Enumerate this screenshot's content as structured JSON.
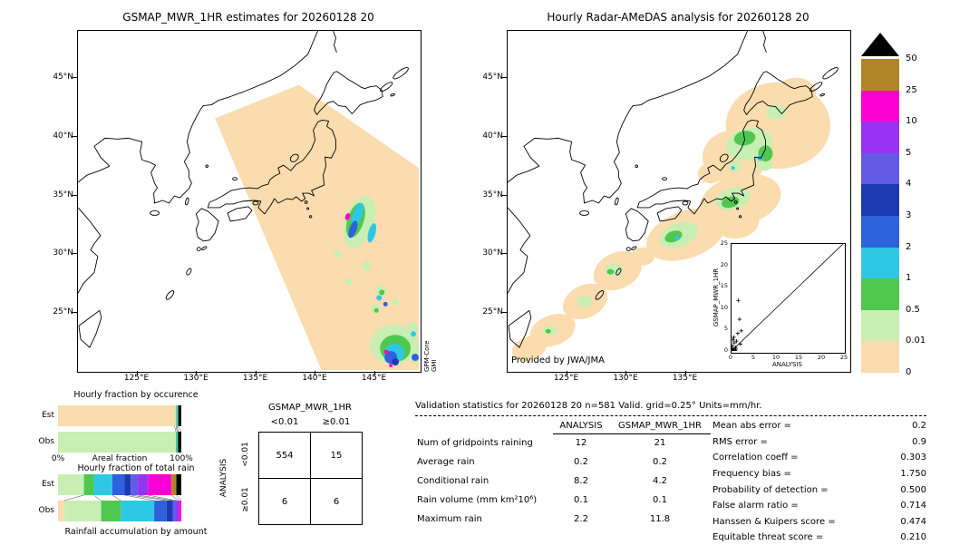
{
  "left_map": {
    "title": "GSMAP_MWR_1HR estimates for 20260128 20",
    "lat_ticks": [
      "45°N",
      "40°N",
      "35°N",
      "30°N",
      "25°N"
    ],
    "lon_ticks": [
      "125°E",
      "130°E",
      "135°E",
      "140°E",
      "145°E"
    ],
    "sensor_line1": "GPM-Core",
    "sensor_line2": "GMI"
  },
  "right_map": {
    "title": "Hourly Radar-AMeDAS analysis for 20260128 20",
    "lat_ticks": [
      "45°N",
      "40°N",
      "35°N",
      "30°N",
      "25°N"
    ],
    "lon_ticks": [
      "125°E",
      "130°E",
      "135°E"
    ],
    "credit": "Provided by JWA/JMA"
  },
  "inset": {
    "xlabel": "ANALYSIS",
    "ylabel": "GSMAP_MWR_1HR",
    "x_ticks": [
      "0",
      "5",
      "10",
      "15",
      "20",
      "25"
    ],
    "y_ticks": [
      "0",
      "5",
      "10",
      "15",
      "20",
      "25"
    ]
  },
  "colorbar": {
    "tick_labels": [
      "50",
      "25",
      "10",
      "5",
      "4",
      "3",
      "2",
      "1",
      "0.5",
      "0.01",
      "0"
    ],
    "colors": [
      "#b28428",
      "#fa00d2",
      "#9632f0",
      "#645ae8",
      "#1e3ab0",
      "#2d62dc",
      "#2ec8e6",
      "#50c850",
      "#c8eeb4",
      "#fbdcae"
    ],
    "overflow_color": "#000000"
  },
  "occurrence_chart": {
    "title": "Hourly fraction by occurence",
    "row_labels": [
      "Est",
      "Obs"
    ],
    "x_min": "0%",
    "x_max": "100%",
    "x_title": "Areal fraction"
  },
  "amount_chart": {
    "title": "Hourly fraction of total rain",
    "row_labels": [
      "Est",
      "Obs"
    ],
    "caption": "Rainfall accumulation by amount"
  },
  "contingency": {
    "title": "GSMAP_MWR_1HR",
    "col_labels": [
      "<0.01",
      "≥0.01"
    ],
    "row_labels": [
      "<0.01",
      "≥0.01"
    ],
    "side_label": "ANALYSIS",
    "values": [
      [
        "554",
        "15"
      ],
      [
        "6",
        "6"
      ]
    ]
  },
  "stats": {
    "title": "Validation statistics for 20260128 20  n=581 Valid. grid=0.25° Units=mm/hr.",
    "col_headers": [
      "ANALYSIS",
      "GSMAP_MWR_1HR"
    ],
    "rows": [
      {
        "label": "Num of gridpoints raining",
        "analysis": "12",
        "gsmap": "21"
      },
      {
        "label": "Average rain",
        "analysis": "0.2",
        "gsmap": "0.2"
      },
      {
        "label": "Conditional rain",
        "analysis": "8.2",
        "gsmap": "4.2"
      },
      {
        "label": "Rain volume (mm km²10⁶)",
        "analysis": "0.1",
        "gsmap": "0.1"
      },
      {
        "label": "Maximum rain",
        "analysis": "2.2",
        "gsmap": "11.8"
      }
    ],
    "metrics": [
      {
        "label": "Mean abs error",
        "value": "0.2"
      },
      {
        "label": "RMS error",
        "value": "0.9"
      },
      {
        "label": "Correlation coeff",
        "value": "0.303"
      },
      {
        "label": "Frequency bias",
        "value": "1.750"
      },
      {
        "label": "Probability of detection",
        "value": "0.500"
      },
      {
        "label": "False alarm ratio",
        "value": "0.714"
      },
      {
        "label": "Hanssen & Kuipers score",
        "value": "0.474"
      },
      {
        "label": "Equitable threat score",
        "value": "0.210"
      }
    ]
  },
  "chart_data": [
    {
      "type": "scatter",
      "title": "GSMAP_MWR_1HR vs ANALYSIS (inset)",
      "xlabel": "ANALYSIS",
      "ylabel": "GSMAP_MWR_1HR",
      "xlim": [
        0,
        25
      ],
      "ylim": [
        0,
        25
      ],
      "diagonal_line": true,
      "points": [
        [
          0.1,
          0.1
        ],
        [
          0.2,
          0.2
        ],
        [
          0.3,
          0.1
        ],
        [
          0.1,
          0.6
        ],
        [
          0.4,
          0.3
        ],
        [
          0.2,
          1.2
        ],
        [
          0.6,
          1.9
        ],
        [
          0.9,
          0.8
        ],
        [
          1.1,
          2.3
        ],
        [
          0.5,
          3.2
        ],
        [
          1.4,
          4.1
        ],
        [
          2.2,
          4.7
        ],
        [
          1.8,
          7.4
        ],
        [
          1.5,
          11.8
        ],
        [
          0.8,
          0.1
        ],
        [
          0.3,
          2.6
        ],
        [
          1.0,
          0.4
        ],
        [
          2.0,
          1.6
        ]
      ]
    },
    {
      "type": "bar",
      "title": "Hourly fraction by occurence",
      "orientation": "horizontal",
      "categories": [
        "Est",
        "Obs"
      ],
      "xlabel": "Areal fraction",
      "xlim_labels": [
        "0%",
        "100%"
      ],
      "est_segments": [
        {
          "color": "#fbdcae",
          "frac": 0.945
        },
        {
          "color": "#c8eeb4",
          "frac": 0.013
        },
        {
          "color": "#50c850",
          "frac": 0.008
        },
        {
          "color": "#2ec8e6",
          "frac": 0.006
        },
        {
          "color": "#2d62dc",
          "frac": 0.005
        },
        {
          "color": "#000000",
          "frac": 0.023
        }
      ],
      "obs_segments": [
        {
          "color": "#c8eeb4",
          "frac": 0.956
        },
        {
          "color": "#50c850",
          "frac": 0.01
        },
        {
          "color": "#2ec8e6",
          "frac": 0.008
        },
        {
          "color": "#000000",
          "frac": 0.026
        }
      ]
    },
    {
      "type": "bar",
      "title": "Hourly fraction of total rain",
      "orientation": "horizontal",
      "categories": [
        "Est",
        "Obs"
      ],
      "caption": "Rainfall accumulation by amount",
      "est_segments": [
        {
          "color": "#c8eeb4",
          "frac": 0.21
        },
        {
          "color": "#50c850",
          "frac": 0.08
        },
        {
          "color": "#2ec8e6",
          "frac": 0.15
        },
        {
          "color": "#2d62dc",
          "frac": 0.1
        },
        {
          "color": "#1e3ab0",
          "frac": 0.05
        },
        {
          "color": "#645ae8",
          "frac": 0.06
        },
        {
          "color": "#9632f0",
          "frac": 0.08
        },
        {
          "color": "#fa00d2",
          "frac": 0.19
        },
        {
          "color": "#b28428",
          "frac": 0.04
        },
        {
          "color": "#000000",
          "frac": 0.04
        }
      ],
      "obs_segments": [
        {
          "color": "#fbdcae",
          "frac": 0.05
        },
        {
          "color": "#c8eeb4",
          "frac": 0.3
        },
        {
          "color": "#50c850",
          "frac": 0.16
        },
        {
          "color": "#2ec8e6",
          "frac": 0.27
        },
        {
          "color": "#2d62dc",
          "frac": 0.1
        },
        {
          "color": "#1e3ab0",
          "frac": 0.05
        },
        {
          "color": "#645ae8",
          "frac": 0.03
        },
        {
          "color": "#9632f0",
          "frac": 0.02
        },
        {
          "color": "#fa00d2",
          "frac": 0.02
        }
      ]
    },
    {
      "type": "table",
      "title": "GSMAP_MWR_1HR contingency (counts)",
      "row_axis": "ANALYSIS",
      "columns": [
        "<0.01",
        "≥0.01"
      ],
      "row_labels": [
        "<0.01",
        "≥0.01"
      ],
      "values": [
        [
          554,
          15
        ],
        [
          6,
          6
        ]
      ]
    },
    {
      "type": "table",
      "title": "Validation statistics for 20260128 20 n=581 Valid. grid=0.25° Units=mm/hr.",
      "columns": [
        "ANALYSIS",
        "GSMAP_MWR_1HR"
      ],
      "rows": [
        [
          "Num of gridpoints raining",
          12,
          21
        ],
        [
          "Average rain",
          0.2,
          0.2
        ],
        [
          "Conditional rain",
          8.2,
          4.2
        ],
        [
          "Rain volume (mm km²10⁶)",
          0.1,
          0.1
        ],
        [
          "Maximum rain",
          2.2,
          11.8
        ]
      ],
      "metrics": {
        "Mean abs error": 0.2,
        "RMS error": 0.9,
        "Correlation coeff": 0.303,
        "Frequency bias": 1.75,
        "Probability of detection": 0.5,
        "False alarm ratio": 0.714,
        "Hanssen & Kuipers score": 0.474,
        "Equitable threat score": 0.21
      }
    },
    {
      "type": "legend",
      "title": "Rain rate scale (mm/hr)",
      "levels_low_to_high": [
        "0",
        "0.01",
        "0.5",
        "1",
        "2",
        "3",
        "4",
        "5",
        "10",
        "25",
        "50",
        ">50"
      ],
      "colors_low_to_high": [
        "#fbdcae",
        "#c8eeb4",
        "#50c850",
        "#2ec8e6",
        "#2d62dc",
        "#1e3ab0",
        "#645ae8",
        "#9632f0",
        "#fa00d2",
        "#b28428",
        "#000000"
      ]
    }
  ]
}
